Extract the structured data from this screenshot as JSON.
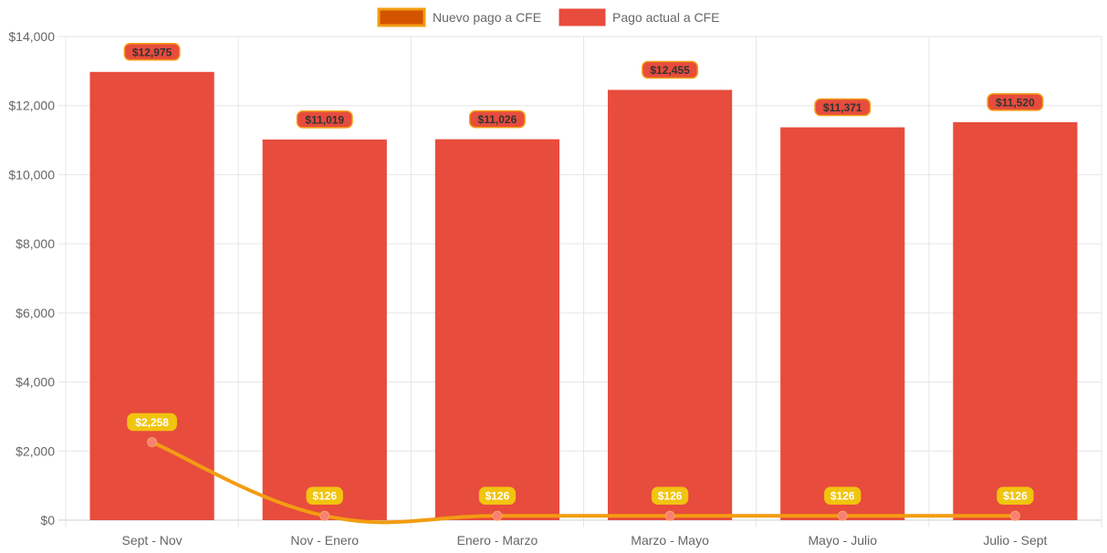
{
  "chart_data": {
    "type": "bar",
    "categories": [
      "Sept - Nov",
      "Nov - Enero",
      "Enero - Marzo",
      "Marzo - Mayo",
      "Mayo - Julio",
      "Julio - Sept"
    ],
    "ylim": [
      0,
      14000
    ],
    "yticks": [
      0,
      2000,
      4000,
      6000,
      8000,
      10000,
      12000,
      14000
    ],
    "ytick_labels": [
      "$0",
      "$2,000",
      "$4,000",
      "$6,000",
      "$8,000",
      "$10,000",
      "$12,000",
      "$14,000"
    ],
    "grid": true,
    "legend_position": "top",
    "series": [
      {
        "name": "Nuevo pago a CFE",
        "type": "line",
        "values": [
          2258,
          126,
          126,
          126,
          126,
          126
        ],
        "labels": [
          "$2,258",
          "$126",
          "$126",
          "$126",
          "$126",
          "$126"
        ],
        "color": "#F39C12",
        "point_color": "#FA7F72",
        "label_bg": "#F1C40F",
        "label_text_color": "#FFFFFF"
      },
      {
        "name": "Pago actual a CFE",
        "type": "bar",
        "values": [
          12975,
          11019,
          11026,
          12455,
          11371,
          11520
        ],
        "labels": [
          "$12,975",
          "$11,019",
          "$11,026",
          "$12,455",
          "$11,371",
          "$11,520"
        ],
        "color": "#E74C3C",
        "label_bg": "#E74C3C",
        "label_border": "#F39C12",
        "label_text_color": "#333333"
      }
    ],
    "legend": [
      {
        "label": "Nuevo pago a CFE",
        "fill": "#D35400",
        "border": "#F39C12"
      },
      {
        "label": "Pago actual a CFE",
        "fill": "#E74C3C",
        "border": "#E74C3C"
      }
    ]
  }
}
